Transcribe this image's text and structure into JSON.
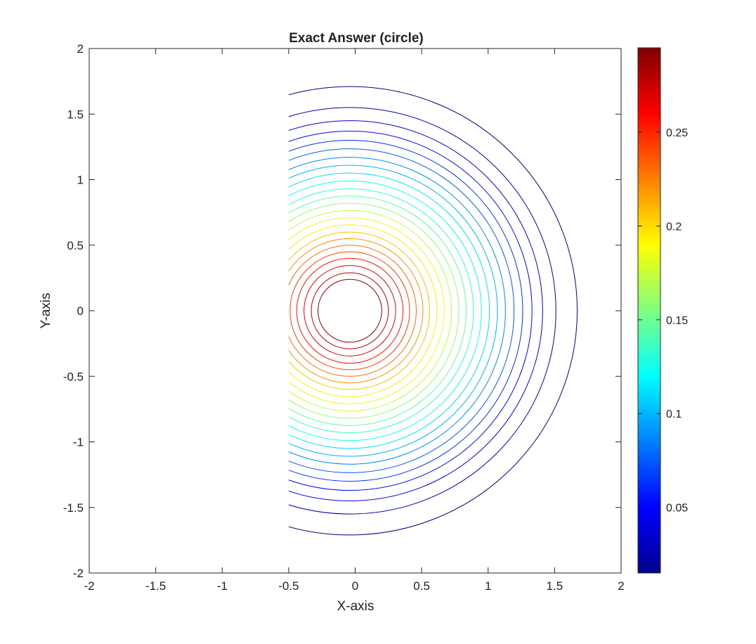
{
  "chart_data": {
    "type": "contour",
    "title": "Exact Answer (circle)",
    "xlabel": "X-axis",
    "ylabel": "Y-axis",
    "xlim": [
      -2,
      2
    ],
    "ylim": [
      -2,
      2
    ],
    "xticks": [
      "-2",
      "-1.5",
      "-1",
      "-0.5",
      "0",
      "0.5",
      "1",
      "1.5",
      "2"
    ],
    "yticks": [
      "-2",
      "-1.5",
      "-1",
      "-0.5",
      "0",
      "0.5",
      "1",
      "1.5",
      "2"
    ],
    "domain_left_edge_x": -0.5,
    "center": [
      -0.04,
      0.0
    ],
    "colormap": "jet",
    "colorbar": {
      "range": [
        0.015,
        0.295
      ],
      "ticks": [
        "0.05",
        "0.1",
        "0.15",
        "0.2",
        "0.25"
      ]
    },
    "contours": [
      {
        "level": 0.015,
        "radius": 1.71
      },
      {
        "level": 0.027,
        "radius": 1.55
      },
      {
        "level": 0.039,
        "radius": 1.45
      },
      {
        "level": 0.051,
        "radius": 1.37
      },
      {
        "level": 0.063,
        "radius": 1.3
      },
      {
        "level": 0.075,
        "radius": 1.235
      },
      {
        "level": 0.087,
        "radius": 1.17
      },
      {
        "level": 0.099,
        "radius": 1.11
      },
      {
        "level": 0.111,
        "radius": 1.05
      },
      {
        "level": 0.123,
        "radius": 0.99
      },
      {
        "level": 0.135,
        "radius": 0.93
      },
      {
        "level": 0.147,
        "radius": 0.875
      },
      {
        "level": 0.159,
        "radius": 0.82
      },
      {
        "level": 0.171,
        "radius": 0.765
      },
      {
        "level": 0.183,
        "radius": 0.71
      },
      {
        "level": 0.195,
        "radius": 0.655
      },
      {
        "level": 0.207,
        "radius": 0.6
      },
      {
        "level": 0.219,
        "radius": 0.55
      },
      {
        "level": 0.231,
        "radius": 0.5
      },
      {
        "level": 0.243,
        "radius": 0.45
      },
      {
        "level": 0.255,
        "radius": 0.4
      },
      {
        "level": 0.267,
        "radius": 0.345
      },
      {
        "level": 0.279,
        "radius": 0.29
      },
      {
        "level": 0.291,
        "radius": 0.24
      }
    ]
  }
}
